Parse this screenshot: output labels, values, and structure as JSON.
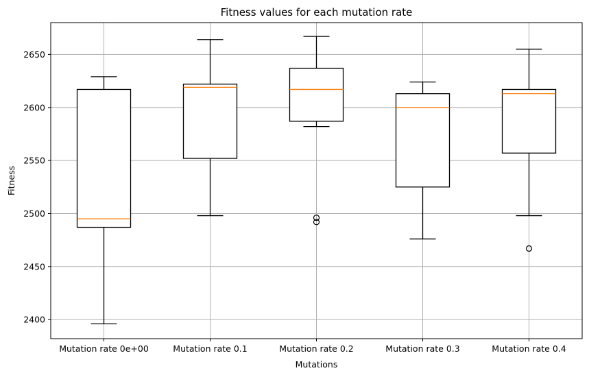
{
  "chart_data": {
    "type": "box",
    "title": "Fitness values for each mutation rate",
    "xlabel": "Mutations",
    "ylabel": "Fitness",
    "categories": [
      "Mutation rate 0e+00",
      "Mutation rate 0.1",
      "Mutation rate 0.2",
      "Mutation rate 0.3",
      "Mutation rate 0.4"
    ],
    "ylim": [
      2382,
      2680
    ],
    "yticks": [
      2400,
      2450,
      2500,
      2550,
      2600,
      2650
    ],
    "grid": true,
    "boxes": [
      {
        "whisker_low": 2396,
        "q1": 2487,
        "median": 2495,
        "q3": 2617,
        "whisker_high": 2629,
        "outliers": []
      },
      {
        "whisker_low": 2498,
        "q1": 2552,
        "median": 2619,
        "q3": 2622,
        "whisker_high": 2664,
        "outliers": []
      },
      {
        "whisker_low": 2582,
        "q1": 2587,
        "median": 2617,
        "q3": 2637,
        "whisker_high": 2667,
        "outliers": [
          2496,
          2492
        ]
      },
      {
        "whisker_low": 2476,
        "q1": 2525,
        "median": 2600,
        "q3": 2613,
        "whisker_high": 2624,
        "outliers": []
      },
      {
        "whisker_low": 2498,
        "q1": 2557,
        "median": 2613,
        "q3": 2617,
        "whisker_high": 2655,
        "outliers": [
          2467
        ]
      }
    ],
    "colors": {
      "box": "#000000",
      "median": "#ff7f0e",
      "grid": "#b0b0b0"
    }
  }
}
